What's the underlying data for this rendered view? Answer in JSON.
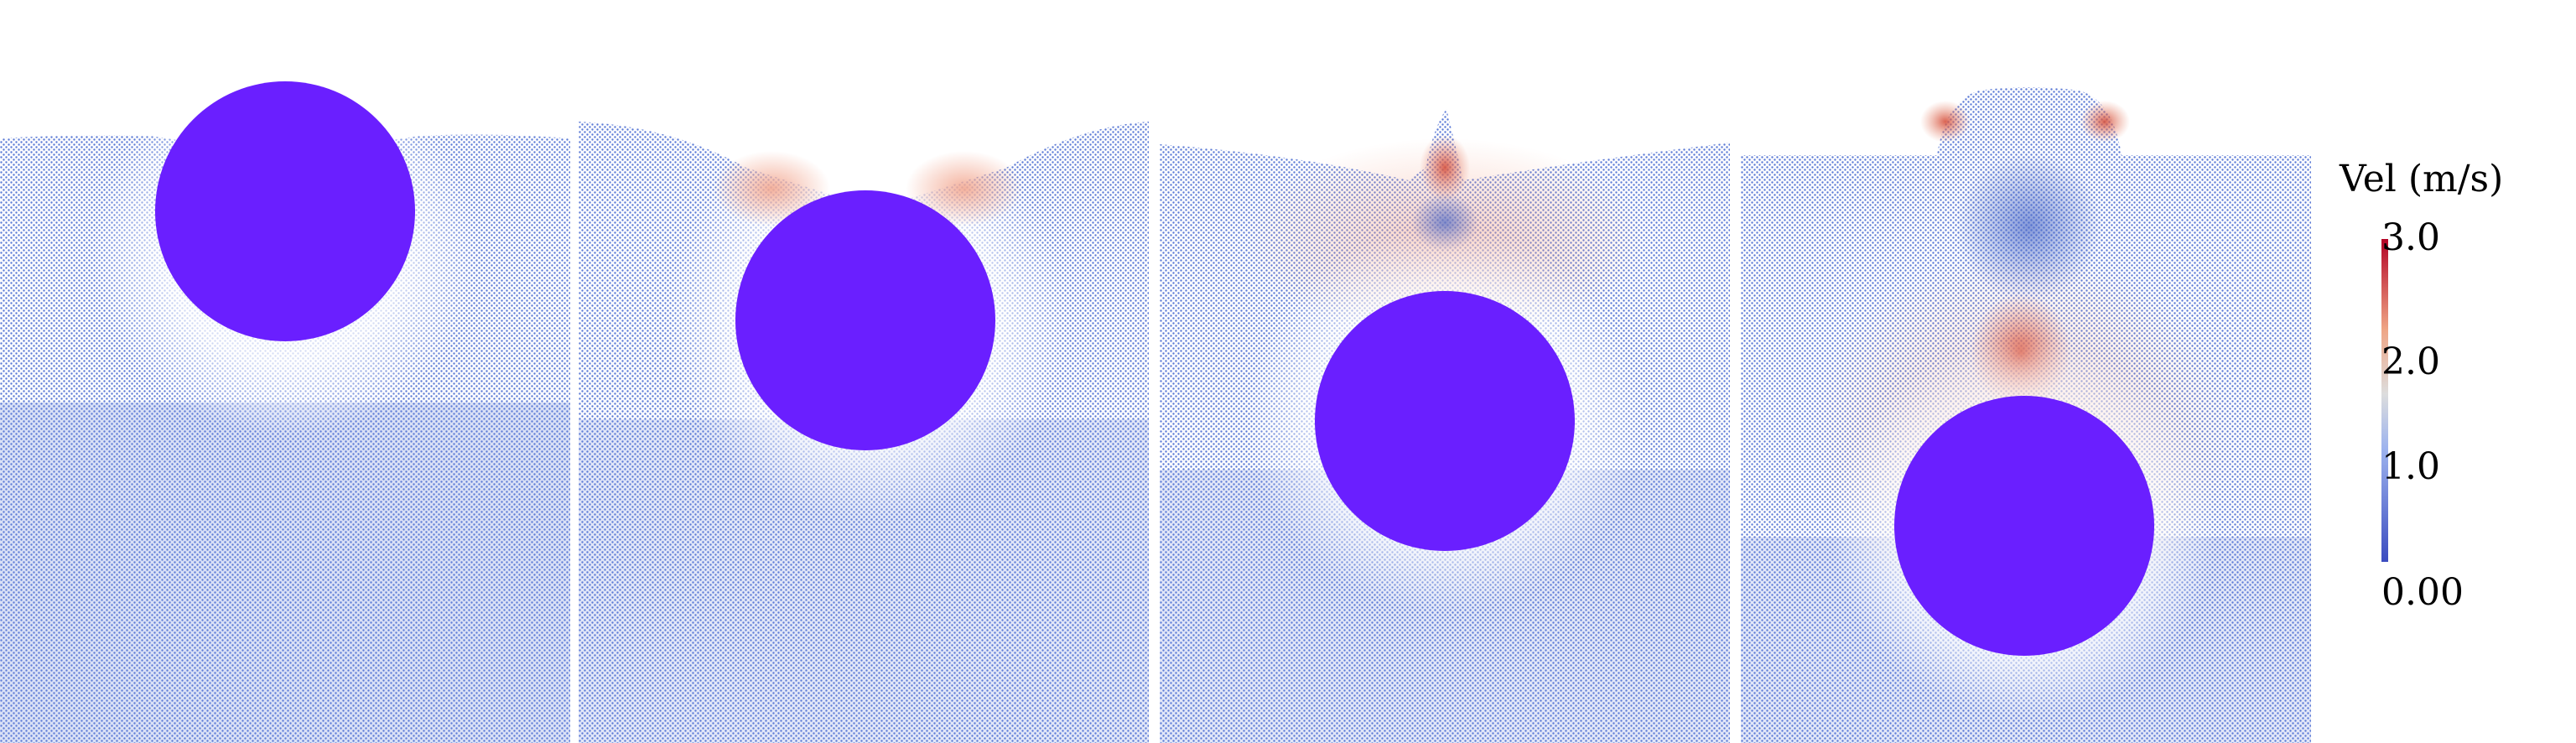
{
  "colorbar": {
    "title": "Vel (m/s)",
    "ticks": [
      {
        "label": "3.0",
        "value": 3.0
      },
      {
        "label": "2.0",
        "value": 2.0
      },
      {
        "label": "1.0",
        "value": 1.0
      },
      {
        "label": "0.00",
        "value": 0.0
      }
    ],
    "colors": {
      "low": "#3b4cc0",
      "mid": "#dddddd",
      "high": "#b40426"
    }
  },
  "sphere_color": "#6a1fff",
  "fluid_color": "#8fa9e6"
}
